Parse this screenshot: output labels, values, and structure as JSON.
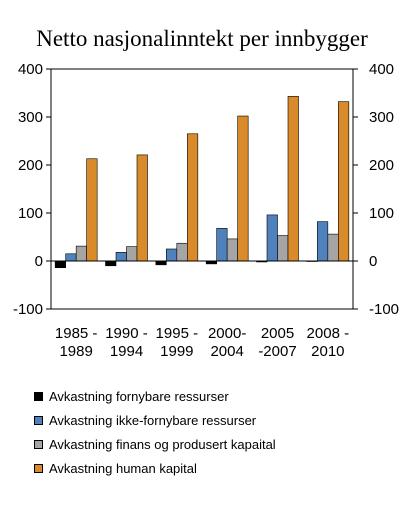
{
  "chart_data": {
    "type": "bar",
    "title": "Netto nasjonalinntekt per innbygger",
    "categories": [
      [
        "1985 -",
        "1989"
      ],
      [
        "1990 -",
        "1994"
      ],
      [
        "1995 -",
        "1999"
      ],
      [
        "2000-",
        "2004"
      ],
      [
        "2005",
        "-2007"
      ],
      [
        "2008 -",
        "2010"
      ]
    ],
    "series": [
      {
        "name": "Avkastning fornybare ressurser",
        "color": "#000000",
        "values": [
          -14,
          -10,
          -8,
          -6,
          -2,
          -1
        ]
      },
      {
        "name": "Avkastning ikke-fornybare ressurser",
        "color": "#4f81bd",
        "values": [
          15,
          18,
          25,
          68,
          96,
          82
        ]
      },
      {
        "name": "Avkastning finans og produsert kapaital",
        "color": "#a5a5a5",
        "values": [
          31,
          30,
          37,
          46,
          53,
          56
        ]
      },
      {
        "name": "Avkastning human kapital",
        "color": "#d98b2b",
        "values": [
          213,
          221,
          265,
          302,
          343,
          332
        ]
      }
    ],
    "ylim": [
      -100,
      400
    ],
    "yticks": [
      "-100",
      "0",
      "100",
      "200",
      "300",
      "400"
    ],
    "ytick_values": [
      -100,
      0,
      100,
      200,
      300,
      400
    ],
    "secondary_axis": true,
    "grid": false,
    "legend_position": "bottom"
  }
}
